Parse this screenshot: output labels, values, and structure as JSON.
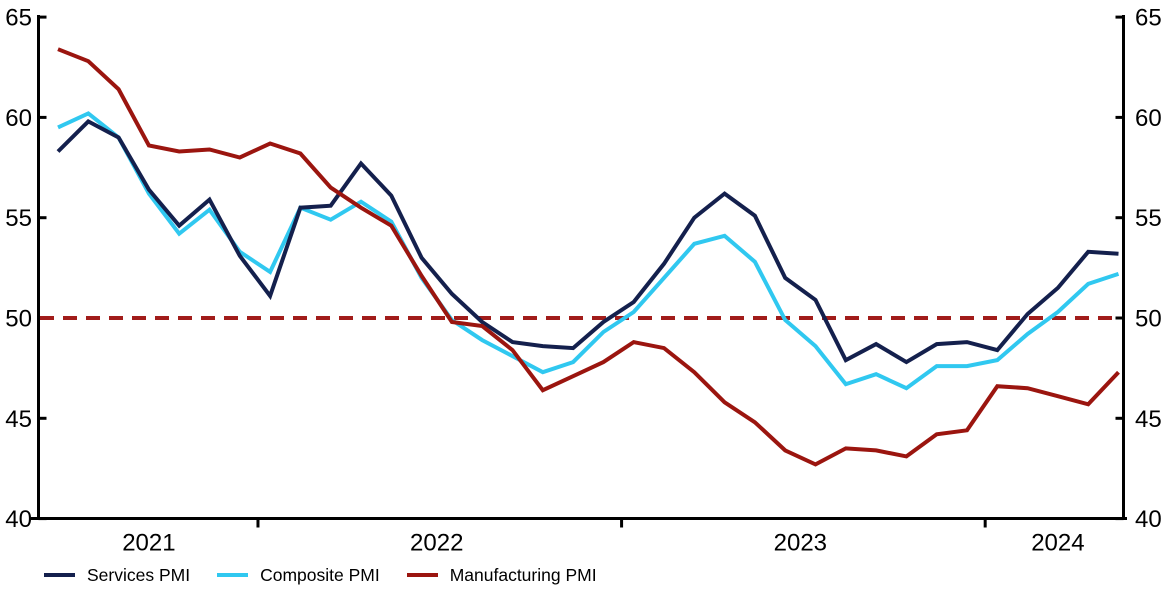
{
  "chart_data": {
    "type": "line",
    "title": "",
    "xlabel": "",
    "ylabel": "",
    "ylim": [
      40,
      65
    ],
    "y_ticks": [
      65,
      60,
      55,
      50,
      45,
      40
    ],
    "grid": false,
    "axes_mirrored_right": true,
    "legend_position": "bottom-left",
    "months": [
      "2021-06",
      "2021-07",
      "2021-08",
      "2021-09",
      "2021-10",
      "2021-11",
      "2021-12",
      "2022-01",
      "2022-02",
      "2022-03",
      "2022-04",
      "2022-05",
      "2022-06",
      "2022-07",
      "2022-08",
      "2022-09",
      "2022-10",
      "2022-11",
      "2022-12",
      "2023-01",
      "2023-02",
      "2023-03",
      "2023-04",
      "2023-05",
      "2023-06",
      "2023-07",
      "2023-08",
      "2023-09",
      "2023-10",
      "2023-11",
      "2023-12",
      "2024-01",
      "2024-02",
      "2024-03",
      "2024-04",
      "2024-05"
    ],
    "x_year_labels": [
      "2021",
      "2022",
      "2023",
      "2024"
    ],
    "series": [
      {
        "name": "Services PMI",
        "color": "#14204d",
        "values": [
          58.3,
          59.8,
          59.0,
          56.4,
          54.6,
          55.9,
          53.1,
          51.1,
          55.5,
          55.6,
          57.7,
          56.1,
          53.0,
          51.2,
          49.8,
          48.8,
          48.6,
          48.5,
          49.8,
          50.8,
          52.7,
          55.0,
          56.2,
          55.1,
          52.0,
          50.9,
          47.9,
          48.7,
          47.8,
          48.7,
          48.8,
          48.4,
          50.2,
          51.5,
          53.3,
          53.2
        ]
      },
      {
        "name": "Composite PMI",
        "color": "#30c8f0",
        "values": [
          59.5,
          60.2,
          59.0,
          56.2,
          54.2,
          55.4,
          53.3,
          52.3,
          55.5,
          54.9,
          55.8,
          54.8,
          52.0,
          49.9,
          48.9,
          48.1,
          47.3,
          47.8,
          49.3,
          50.3,
          52.0,
          53.7,
          54.1,
          52.8,
          49.9,
          48.6,
          46.7,
          47.2,
          46.5,
          47.6,
          47.6,
          47.9,
          49.2,
          50.3,
          51.7,
          52.2
        ]
      },
      {
        "name": "Manufacturing PMI",
        "color": "#9b150f",
        "values": [
          63.4,
          62.8,
          61.4,
          58.6,
          58.3,
          58.4,
          58.0,
          58.7,
          58.2,
          56.5,
          55.5,
          54.6,
          52.1,
          49.8,
          49.6,
          48.4,
          46.4,
          47.1,
          47.8,
          48.8,
          48.5,
          47.3,
          45.8,
          44.8,
          43.4,
          42.7,
          43.5,
          43.4,
          43.1,
          44.2,
          44.4,
          46.6,
          46.5,
          46.1,
          45.7,
          47.3
        ]
      }
    ],
    "reference_line": {
      "value": 50,
      "style": "dashed",
      "color": "#a11c1a"
    },
    "draw_order": [
      "Composite PMI",
      "Services PMI",
      "Manufacturing PMI"
    ],
    "colors": {
      "axis": "#000000",
      "text": "#000000",
      "background": "#ffffff"
    }
  }
}
